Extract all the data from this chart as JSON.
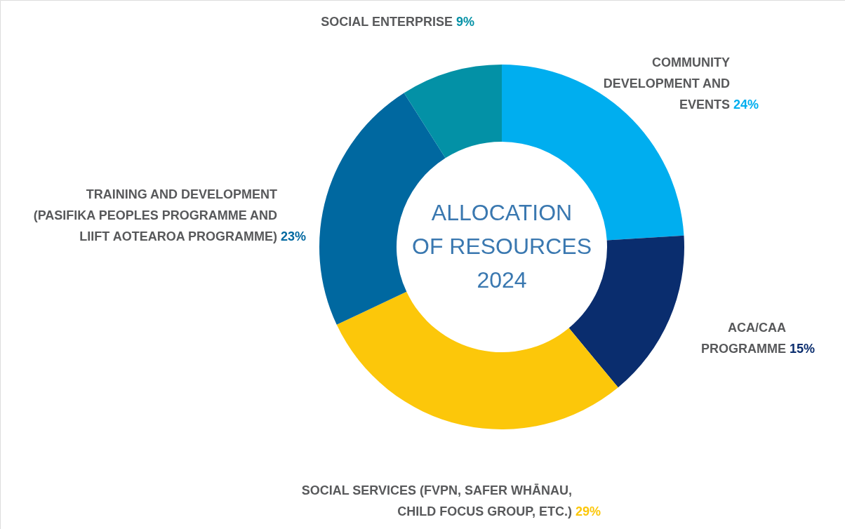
{
  "chart_data": {
    "type": "donut",
    "title": "ALLOCATION OF RESOURCES 2024",
    "categories": [
      "COMMUNITY DEVELOPMENT AND EVENTS",
      "ACA/CAA PROGRAMME",
      "SOCIAL SERVICES (FVPN, SAFER WHĀNAU, CHILD FOCUS GROUP, ETC.)",
      "TRAINING AND DEVELOPMENT (PASIFIKA PEOPLES PROGRAMME AND LIIFT AOTEAROA PROGRAMME)",
      "SOCIAL ENTERPRISE"
    ],
    "values": [
      24,
      15,
      29,
      23,
      9
    ],
    "value_labels": [
      "24%",
      "15%",
      "29%",
      "23%",
      "9%"
    ],
    "colors": [
      "#00aeef",
      "#0a2d6e",
      "#fcc70a",
      "#0068a0",
      "#0391a6"
    ]
  }
}
